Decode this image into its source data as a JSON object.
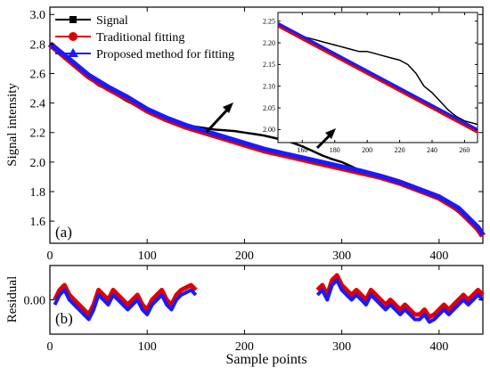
{
  "chart_data": [
    {
      "panel": "(a)",
      "type": "line",
      "ylabel": "Signal intensity",
      "xlabel": "",
      "xlim": [
        0,
        445
      ],
      "ylim": [
        1.45,
        3.05
      ],
      "xticks": [
        0,
        100,
        200,
        300,
        400
      ],
      "yticks": [
        1.6,
        1.8,
        2.0,
        2.2,
        2.4,
        2.6,
        2.8,
        3.0
      ],
      "legend": {
        "placement": "top-left",
        "entries": [
          "Signal",
          "Traditional fitting",
          "Proposed method for fitting"
        ]
      },
      "series": [
        {
          "name": "Signal",
          "color": "#000000",
          "marker": "square",
          "x": [
            0,
            10,
            20,
            30,
            40,
            50,
            60,
            70,
            80,
            90,
            100,
            110,
            120,
            130,
            140,
            150,
            160,
            170,
            180,
            190,
            200,
            210,
            220,
            230,
            240,
            250,
            260,
            270,
            280,
            290,
            300,
            310,
            320,
            330,
            340,
            350,
            360,
            370,
            380,
            390,
            400,
            410,
            420,
            430,
            440,
            445
          ],
          "y": [
            2.78,
            2.75,
            2.7,
            2.63,
            2.57,
            2.52,
            2.49,
            2.45,
            2.41,
            2.38,
            2.34,
            2.31,
            2.29,
            2.27,
            2.25,
            2.24,
            2.23,
            2.22,
            2.215,
            2.21,
            2.2,
            2.19,
            2.18,
            2.165,
            2.15,
            2.13,
            2.105,
            2.075,
            2.045,
            2.02,
            2.0,
            1.97,
            1.94,
            1.915,
            1.9,
            1.88,
            1.86,
            1.83,
            1.8,
            1.775,
            1.745,
            1.71,
            1.66,
            1.6,
            1.53,
            1.5
          ]
        },
        {
          "name": "Traditional fitting",
          "color": "#e00000",
          "marker": "circle",
          "x": [
            0,
            20,
            40,
            60,
            80,
            100,
            120,
            140,
            160,
            180,
            200,
            220,
            240,
            260,
            280,
            300,
            320,
            340,
            360,
            380,
            400,
            420,
            440,
            445
          ],
          "y": [
            2.8,
            2.69,
            2.58,
            2.5,
            2.43,
            2.35,
            2.29,
            2.24,
            2.2,
            2.16,
            2.12,
            2.08,
            2.05,
            2.02,
            1.99,
            1.96,
            1.93,
            1.9,
            1.86,
            1.81,
            1.76,
            1.68,
            1.55,
            1.5
          ]
        },
        {
          "name": "Proposed method for fitting",
          "color": "#1a1aff",
          "marker": "triangle",
          "x": [
            0,
            20,
            40,
            60,
            80,
            100,
            120,
            140,
            160,
            180,
            200,
            220,
            240,
            260,
            280,
            300,
            320,
            340,
            360,
            380,
            400,
            420,
            440,
            445
          ],
          "y": [
            2.8,
            2.7,
            2.59,
            2.51,
            2.44,
            2.36,
            2.3,
            2.25,
            2.21,
            2.17,
            2.13,
            2.09,
            2.06,
            2.03,
            2.0,
            1.97,
            1.94,
            1.905,
            1.865,
            1.815,
            1.765,
            1.69,
            1.56,
            1.51
          ]
        }
      ]
    },
    {
      "panel": "inset",
      "type": "line",
      "xlim": [
        145,
        268
      ],
      "ylim": [
        1.97,
        2.27
      ],
      "xticks": [
        160,
        180,
        200,
        220,
        240,
        260
      ],
      "yticks": [
        2.0,
        2.05,
        2.1,
        2.15,
        2.2,
        2.25
      ],
      "series": [
        {
          "name": "Signal",
          "color": "#000000",
          "x": [
            145,
            150,
            155,
            160,
            165,
            170,
            175,
            180,
            185,
            190,
            195,
            200,
            205,
            210,
            215,
            220,
            225,
            230,
            235,
            240,
            245,
            250,
            255,
            260,
            265,
            268
          ],
          "y": [
            2.24,
            2.23,
            2.22,
            2.215,
            2.21,
            2.205,
            2.2,
            2.195,
            2.19,
            2.185,
            2.18,
            2.18,
            2.175,
            2.17,
            2.165,
            2.16,
            2.15,
            2.13,
            2.1,
            2.085,
            2.065,
            2.045,
            2.03,
            2.02,
            2.015,
            2.012
          ]
        },
        {
          "name": "Traditional fitting",
          "color": "#e00000",
          "x": [
            145,
            268
          ],
          "y": [
            2.24,
            1.995
          ]
        },
        {
          "name": "Proposed method for fitting",
          "color": "#1a1aff",
          "x": [
            145,
            268
          ],
          "y": [
            2.245,
            2.0
          ]
        }
      ]
    },
    {
      "panel": "(b)",
      "type": "line",
      "ylabel": "Residual",
      "xlabel": "Sample points",
      "xlim": [
        0,
        445
      ],
      "ylim": [
        -0.07,
        0.07
      ],
      "xticks": [
        0,
        100,
        200,
        300,
        400
      ],
      "yticks": [
        0.0
      ],
      "ytick_labels": [
        "0.00"
      ],
      "series": [
        {
          "name": "Traditional fitting",
          "color": "#e00000",
          "x": [
            5,
            10,
            15,
            20,
            25,
            30,
            35,
            40,
            45,
            50,
            55,
            60,
            65,
            70,
            75,
            80,
            85,
            90,
            95,
            100,
            105,
            110,
            115,
            120,
            125,
            130,
            135,
            140,
            145,
            150,
            null,
            275,
            280,
            285,
            290,
            295,
            300,
            305,
            310,
            315,
            320,
            325,
            330,
            335,
            340,
            345,
            350,
            355,
            360,
            365,
            370,
            375,
            380,
            385,
            390,
            395,
            400,
            405,
            410,
            415,
            420,
            425,
            430,
            435,
            440,
            445
          ],
          "y": [
            0.0,
            0.02,
            0.03,
            0.01,
            0.0,
            -0.01,
            -0.02,
            -0.03,
            -0.01,
            0.02,
            0.01,
            0.0,
            0.02,
            0.01,
            0.0,
            -0.01,
            0.0,
            0.01,
            -0.01,
            -0.02,
            0.0,
            0.01,
            0.02,
            0.0,
            -0.01,
            0.01,
            0.02,
            0.025,
            0.03,
            0.02,
            null,
            0.02,
            0.03,
            0.01,
            0.04,
            0.05,
            0.03,
            0.02,
            0.01,
            0.02,
            0.01,
            0.0,
            0.02,
            0.01,
            0.0,
            -0.01,
            0.0,
            -0.01,
            -0.02,
            -0.01,
            -0.02,
            -0.03,
            -0.03,
            -0.02,
            -0.035,
            -0.03,
            -0.02,
            -0.01,
            -0.02,
            -0.01,
            0.0,
            0.01,
            0.0,
            0.01,
            0.02,
            0.01
          ]
        },
        {
          "name": "Proposed method for fitting",
          "color": "#1a1aff",
          "x": [
            5,
            10,
            15,
            20,
            25,
            30,
            35,
            40,
            45,
            50,
            55,
            60,
            65,
            70,
            75,
            80,
            85,
            90,
            95,
            100,
            105,
            110,
            115,
            120,
            125,
            130,
            135,
            140,
            145,
            150,
            null,
            275,
            280,
            285,
            290,
            295,
            300,
            305,
            310,
            315,
            320,
            325,
            330,
            335,
            340,
            345,
            350,
            355,
            360,
            365,
            370,
            375,
            380,
            385,
            390,
            395,
            400,
            405,
            410,
            415,
            420,
            425,
            430,
            435,
            440,
            445
          ],
          "y": [
            -0.01,
            0.01,
            0.02,
            0.0,
            -0.01,
            -0.02,
            -0.03,
            -0.04,
            -0.02,
            0.01,
            0.0,
            -0.01,
            0.01,
            0.0,
            -0.01,
            -0.02,
            -0.01,
            0.0,
            -0.02,
            -0.03,
            -0.01,
            0.0,
            0.01,
            -0.01,
            -0.02,
            0.0,
            0.01,
            0.015,
            0.02,
            0.01,
            null,
            0.01,
            0.02,
            0.0,
            0.03,
            0.04,
            0.02,
            0.01,
            0.0,
            0.01,
            0.0,
            -0.01,
            0.01,
            0.0,
            -0.01,
            -0.02,
            -0.01,
            -0.02,
            -0.03,
            -0.02,
            -0.03,
            -0.04,
            -0.04,
            -0.03,
            -0.045,
            -0.04,
            -0.03,
            -0.02,
            -0.03,
            -0.02,
            -0.01,
            0.0,
            -0.01,
            0.0,
            0.01,
            0.0
          ]
        }
      ]
    }
  ]
}
